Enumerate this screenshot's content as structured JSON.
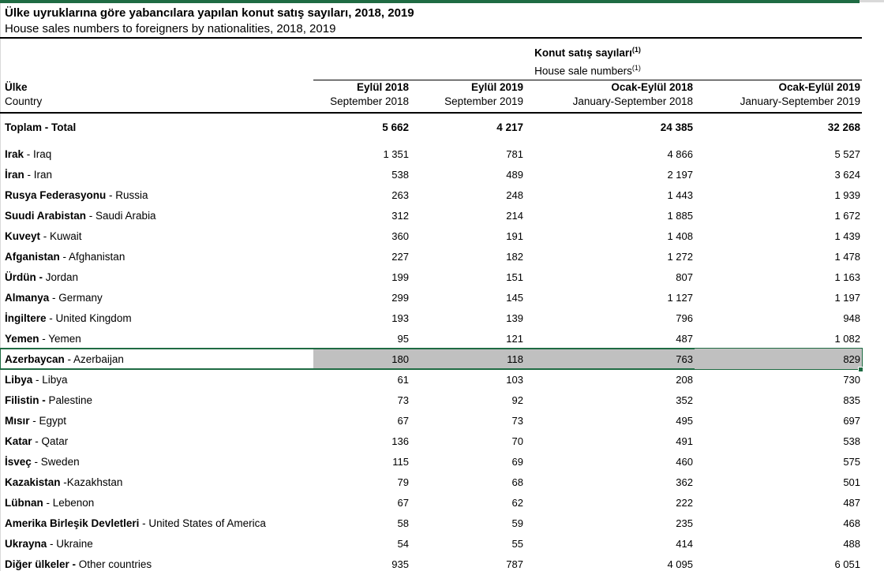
{
  "header": {
    "title_tr": "Ülke uyruklarına göre yabancılara yapılan konut satış sayıları, 2018, 2019",
    "title_en": "House sales numbers to foreigners by nationalities, 2018, 2019"
  },
  "table": {
    "group_header": {
      "tr": "Konut satış sayıları",
      "en": "House sale numbers",
      "footnote_marker": "(1)"
    },
    "country_column": {
      "tr": "Ülke",
      "en": "Country"
    },
    "columns": [
      {
        "tr": "Eylül 2018",
        "en": "September 2018"
      },
      {
        "tr": "Eylül 2019",
        "en": "September 2019"
      },
      {
        "tr": "Ocak-Eylül 2018",
        "en": "January-September 2018"
      },
      {
        "tr": "Ocak-Eylül 2019",
        "en": "January-September 2019"
      }
    ],
    "rows": [
      {
        "name_bold": "Toplam",
        "name_rest": " - Total",
        "values": [
          "5 662",
          "4 217",
          "24 385",
          "32 268"
        ],
        "is_total": true,
        "highlighted": false
      },
      {
        "name_bold": "Irak",
        "name_rest": " - Iraq",
        "values": [
          "1 351",
          "781",
          "4 866",
          "5 527"
        ],
        "is_total": false,
        "highlighted": false
      },
      {
        "name_bold": "İran",
        "name_rest": " - Iran",
        "values": [
          "538",
          "489",
          "2 197",
          "3 624"
        ],
        "is_total": false,
        "highlighted": false
      },
      {
        "name_bold": "Rusya Federasyonu",
        "name_rest": " - Russia",
        "values": [
          "263",
          "248",
          "1 443",
          "1 939"
        ],
        "is_total": false,
        "highlighted": false
      },
      {
        "name_bold": "Suudi Arabistan",
        "name_rest": " - Saudi Arabia",
        "values": [
          "312",
          "214",
          "1 885",
          "1 672"
        ],
        "is_total": false,
        "highlighted": false
      },
      {
        "name_bold": "Kuveyt",
        "name_rest": " - Kuwait",
        "values": [
          "360",
          "191",
          "1 408",
          "1 439"
        ],
        "is_total": false,
        "highlighted": false
      },
      {
        "name_bold": "Afganistan",
        "name_rest": " - Afghanistan",
        "values": [
          "227",
          "182",
          "1 272",
          "1 478"
        ],
        "is_total": false,
        "highlighted": false
      },
      {
        "name_bold": "Ürdün -",
        "name_rest": " Jordan",
        "values": [
          "199",
          "151",
          "807",
          "1 163"
        ],
        "is_total": false,
        "highlighted": false
      },
      {
        "name_bold": "Almanya",
        "name_rest": " - Germany",
        "values": [
          "299",
          "145",
          "1 127",
          "1 197"
        ],
        "is_total": false,
        "highlighted": false
      },
      {
        "name_bold": "İngiltere",
        "name_rest": " - United Kingdom",
        "values": [
          "193",
          "139",
          "796",
          "948"
        ],
        "is_total": false,
        "highlighted": false
      },
      {
        "name_bold": "Yemen",
        "name_rest": " - Yemen",
        "values": [
          "95",
          "121",
          "487",
          "1 082"
        ],
        "is_total": false,
        "highlighted": false
      },
      {
        "name_bold": "Azerbaycan",
        "name_rest": " - Azerbaijan",
        "values": [
          "180",
          "118",
          "763",
          "829"
        ],
        "is_total": false,
        "highlighted": true
      },
      {
        "name_bold": "Libya",
        "name_rest": " - Libya",
        "values": [
          "61",
          "103",
          "208",
          "730"
        ],
        "is_total": false,
        "highlighted": false
      },
      {
        "name_bold": "Filistin -",
        "name_rest": " Palestine",
        "values": [
          "73",
          "92",
          "352",
          "835"
        ],
        "is_total": false,
        "highlighted": false
      },
      {
        "name_bold": "Mısır",
        "name_rest": " - Egypt",
        "values": [
          "67",
          "73",
          "495",
          "697"
        ],
        "is_total": false,
        "highlighted": false
      },
      {
        "name_bold": "Katar",
        "name_rest": " - Qatar",
        "values": [
          "136",
          "70",
          "491",
          "538"
        ],
        "is_total": false,
        "highlighted": false
      },
      {
        "name_bold": "İsveç",
        "name_rest": " - Sweden",
        "values": [
          "115",
          "69",
          "460",
          "575"
        ],
        "is_total": false,
        "highlighted": false
      },
      {
        "name_bold": "Kazakistan",
        "name_rest": " -Kazakhstan",
        "values": [
          "79",
          "68",
          "362",
          "501"
        ],
        "is_total": false,
        "highlighted": false
      },
      {
        "name_bold": "Lübnan",
        "name_rest": " - Lebenon",
        "values": [
          "67",
          "62",
          "222",
          "487"
        ],
        "is_total": false,
        "highlighted": false
      },
      {
        "name_bold": "Amerika Birleşik Devletleri",
        "name_rest": " - United States of America",
        "values": [
          "58",
          "59",
          "235",
          "468"
        ],
        "is_total": false,
        "highlighted": false
      },
      {
        "name_bold": "Ukrayna",
        "name_rest": " - Ukraine",
        "values": [
          "54",
          "55",
          "414",
          "488"
        ],
        "is_total": false,
        "highlighted": false
      },
      {
        "name_bold": "Diğer ülkeler -",
        "name_rest": " Other countries",
        "values": [
          "935",
          "787",
          "4 095",
          "6 051"
        ],
        "is_total": false,
        "highlighted": false
      }
    ]
  },
  "colors": {
    "accent_green": "#1F6B43",
    "highlight_gray": "#c0c0c0",
    "rule_black": "#000000"
  }
}
